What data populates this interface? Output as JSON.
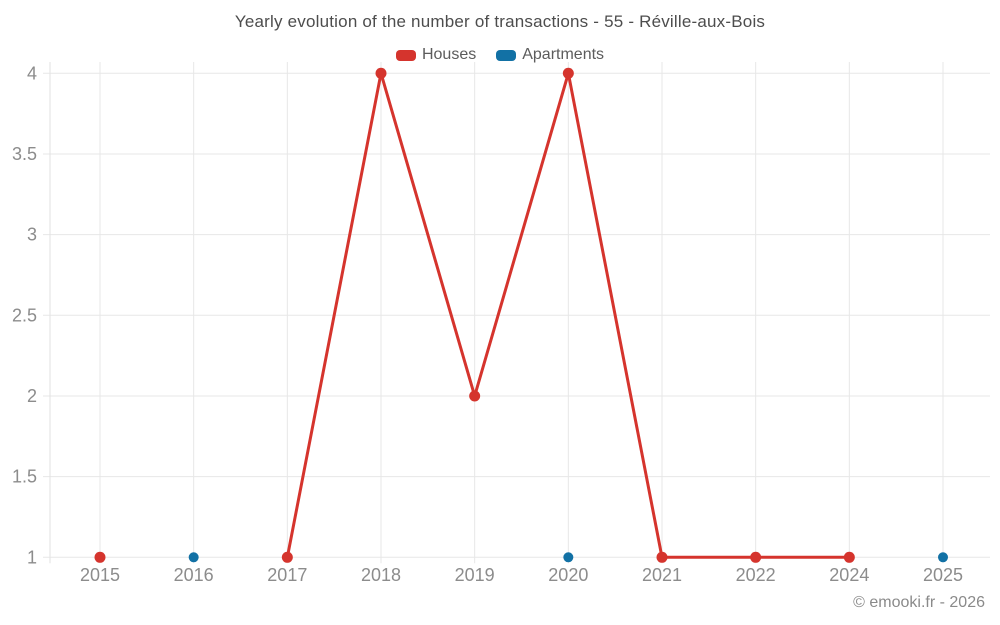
{
  "watermark": "© emooki.fr - 2026",
  "colors": {
    "houses": "#d5342d",
    "apartments": "#1271a5",
    "grid": "#e7e7e7",
    "axis_line": "#e2e2e2",
    "axis_text": "#8c8c8c"
  },
  "chart_data": {
    "type": "line",
    "title": "Yearly evolution of the number of transactions - 55 - Réville-aux-Bois",
    "categories": [
      "2015",
      "2016",
      "2017",
      "2018",
      "2019",
      "2020",
      "2021",
      "2022",
      "2024",
      "2025"
    ],
    "series": [
      {
        "name": "Houses",
        "color": "#d5342d",
        "values": [
          1,
          null,
          1,
          4,
          2,
          4,
          1,
          1,
          1,
          null
        ]
      },
      {
        "name": "Apartments",
        "color": "#1271a5",
        "values": [
          null,
          1,
          null,
          null,
          null,
          1,
          null,
          null,
          null,
          1
        ]
      }
    ],
    "y_ticks": [
      1,
      1.5,
      2,
      2.5,
      3,
      3.5,
      4
    ],
    "ylim": [
      1,
      4
    ],
    "xlabel": "",
    "ylabel": "",
    "grid": true,
    "legend_position": "top",
    "span_gaps": false
  }
}
